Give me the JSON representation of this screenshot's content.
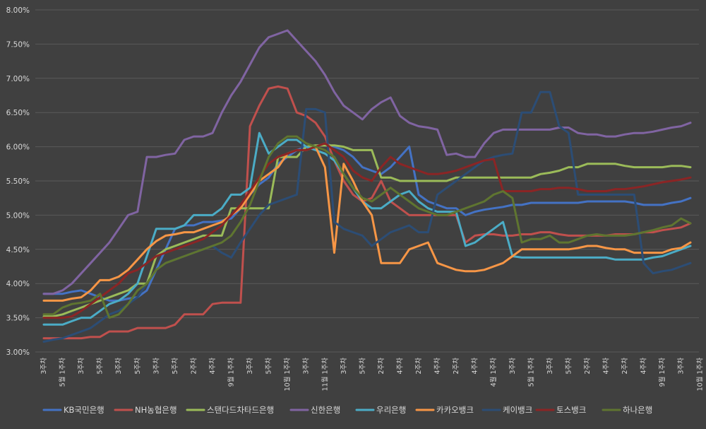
{
  "chart_data": {
    "type": "line",
    "title": "",
    "xlabel": "",
    "ylabel": "",
    "ylim": [
      3.0,
      8.0
    ],
    "yticks": [
      "3.00%",
      "3.50%",
      "4.00%",
      "4.50%",
      "5.00%",
      "5.50%",
      "6.00%",
      "6.50%",
      "7.00%",
      "7.50%",
      "8.00%"
    ],
    "grid": true,
    "legend_position": "bottom",
    "x_tick_labels": [
      {
        "i": 0,
        "label": "3주차"
      },
      {
        "i": 2,
        "label": "5월 1주차"
      },
      {
        "i": 4,
        "label": "3주차"
      },
      {
        "i": 6,
        "label": "5주차"
      },
      {
        "i": 8,
        "label": "3주차"
      },
      {
        "i": 10,
        "label": "5주차"
      },
      {
        "i": 12,
        "label": "3주차"
      },
      {
        "i": 14,
        "label": "5주차"
      },
      {
        "i": 16,
        "label": "2주차"
      },
      {
        "i": 18,
        "label": "4주차"
      },
      {
        "i": 20,
        "label": "9월 1주차"
      },
      {
        "i": 22,
        "label": "3주차"
      },
      {
        "i": 24,
        "label": "5주차"
      },
      {
        "i": 26,
        "label": "10월 1주차"
      },
      {
        "i": 28,
        "label": "3주차"
      },
      {
        "i": 30,
        "label": "11월 1주차"
      },
      {
        "i": 32,
        "label": "3주차"
      },
      {
        "i": 34,
        "label": "5주차"
      },
      {
        "i": 36,
        "label": "2주차"
      },
      {
        "i": 38,
        "label": "4주차"
      },
      {
        "i": 40,
        "label": "2주차"
      },
      {
        "i": 42,
        "label": "4주차"
      },
      {
        "i": 44,
        "label": "2주차"
      },
      {
        "i": 46,
        "label": "4주차"
      },
      {
        "i": 48,
        "label": "4월 1주차"
      },
      {
        "i": 50,
        "label": "3주차"
      },
      {
        "i": 52,
        "label": "5월 1주차"
      },
      {
        "i": 54,
        "label": "3주차"
      },
      {
        "i": 56,
        "label": "5주차"
      },
      {
        "i": 58,
        "label": "2주차"
      },
      {
        "i": 60,
        "label": "4주차"
      },
      {
        "i": 62,
        "label": "2주차"
      },
      {
        "i": 64,
        "label": "4주차"
      },
      {
        "i": 66,
        "label": "9월 1주차"
      },
      {
        "i": 68,
        "label": "3주차"
      },
      {
        "i": 70,
        "label": "10월 1주차"
      }
    ],
    "series": [
      {
        "name": "KB국민은행",
        "color": "#4472c4",
        "values": [
          3.85,
          3.85,
          3.85,
          3.88,
          3.9,
          3.85,
          3.8,
          3.75,
          3.75,
          3.78,
          3.8,
          3.9,
          4.2,
          4.5,
          4.8,
          4.85,
          4.85,
          4.9,
          4.9,
          4.92,
          4.95,
          5.1,
          5.3,
          5.45,
          5.55,
          5.75,
          5.85,
          5.95,
          6.0,
          6.0,
          6.05,
          6.0,
          5.95,
          5.85,
          5.7,
          5.65,
          5.6,
          5.7,
          5.85,
          6.0,
          5.3,
          5.2,
          5.15,
          5.1,
          5.1,
          5.0,
          5.05,
          5.08,
          5.1,
          5.12,
          5.15,
          5.15,
          5.18,
          5.18,
          5.18,
          5.18,
          5.18,
          5.18,
          5.2,
          5.2,
          5.2,
          5.2,
          5.2,
          5.18,
          5.15,
          5.15,
          5.15,
          5.18,
          5.2,
          5.25
        ]
      },
      {
        "name": "NH농협은행",
        "color": "#c0504d",
        "values": [
          3.2,
          3.2,
          3.2,
          3.2,
          3.2,
          3.22,
          3.22,
          3.3,
          3.3,
          3.3,
          3.35,
          3.35,
          3.35,
          3.35,
          3.4,
          3.55,
          3.55,
          3.55,
          3.7,
          3.72,
          3.72,
          3.72,
          6.3,
          6.6,
          6.85,
          6.88,
          6.85,
          6.5,
          6.45,
          6.35,
          6.15,
          5.8,
          5.5,
          5.3,
          5.2,
          5.25,
          5.5,
          5.2,
          5.1,
          5.0,
          5.0,
          5.0,
          5.0,
          5.0,
          5.0,
          4.6,
          4.7,
          4.72,
          4.72,
          4.7,
          4.7,
          4.72,
          4.72,
          4.75,
          4.75,
          4.72,
          4.7,
          4.7,
          4.7,
          4.7,
          4.7,
          4.72,
          4.72,
          4.72,
          4.75,
          4.75,
          4.78,
          4.8,
          4.82,
          4.88
        ]
      },
      {
        "name": "스탠다드차타드은행",
        "color": "#9bbb59",
        "values": [
          3.52,
          3.52,
          3.55,
          3.6,
          3.65,
          3.7,
          3.75,
          3.8,
          3.85,
          3.9,
          4.0,
          4.0,
          4.4,
          4.5,
          4.55,
          4.6,
          4.65,
          4.7,
          4.7,
          4.7,
          5.1,
          5.1,
          5.1,
          5.1,
          5.1,
          5.85,
          5.85,
          5.85,
          6.0,
          6.02,
          6.02,
          6.02,
          6.0,
          5.95,
          5.95,
          5.95,
          5.55,
          5.55,
          5.5,
          5.5,
          5.5,
          5.5,
          5.5,
          5.5,
          5.55,
          5.55,
          5.55,
          5.55,
          5.55,
          5.55,
          5.55,
          5.55,
          5.55,
          5.6,
          5.62,
          5.65,
          5.7,
          5.7,
          5.75,
          5.75,
          5.75,
          5.75,
          5.72,
          5.7,
          5.7,
          5.7,
          5.7,
          5.72,
          5.72,
          5.7
        ]
      },
      {
        "name": "신한은행",
        "color": "#8064a2",
        "values": [
          3.85,
          3.85,
          3.9,
          4.0,
          4.15,
          4.3,
          4.45,
          4.6,
          4.8,
          5.0,
          5.05,
          5.85,
          5.85,
          5.88,
          5.9,
          6.1,
          6.15,
          6.15,
          6.2,
          6.5,
          6.75,
          6.95,
          7.2,
          7.45,
          7.6,
          7.65,
          7.7,
          7.55,
          7.4,
          7.25,
          7.05,
          6.8,
          6.6,
          6.5,
          6.4,
          6.55,
          6.65,
          6.72,
          6.45,
          6.35,
          6.3,
          6.28,
          6.25,
          5.88,
          5.9,
          5.85,
          5.85,
          6.05,
          6.2,
          6.25,
          6.25,
          6.25,
          6.25,
          6.25,
          6.25,
          6.28,
          6.28,
          6.2,
          6.18,
          6.18,
          6.15,
          6.15,
          6.18,
          6.2,
          6.2,
          6.22,
          6.25,
          6.28,
          6.3,
          6.35
        ]
      },
      {
        "name": "우리은행",
        "color": "#4bacc6",
        "values": [
          3.4,
          3.4,
          3.4,
          3.45,
          3.5,
          3.5,
          3.6,
          3.7,
          3.75,
          3.85,
          4.0,
          4.4,
          4.8,
          4.8,
          4.8,
          4.85,
          5.0,
          5.0,
          5.0,
          5.1,
          5.3,
          5.3,
          5.4,
          6.2,
          5.9,
          6.0,
          6.1,
          6.1,
          6.0,
          5.95,
          5.9,
          5.8,
          5.6,
          5.4,
          5.2,
          5.1,
          5.1,
          5.2,
          5.3,
          5.35,
          5.2,
          5.1,
          5.05,
          5.05,
          5.05,
          4.55,
          4.6,
          4.7,
          4.8,
          4.9,
          4.4,
          4.38,
          4.38,
          4.38,
          4.38,
          4.38,
          4.38,
          4.38,
          4.38,
          4.38,
          4.38,
          4.35,
          4.35,
          4.35,
          4.35,
          4.38,
          4.4,
          4.45,
          4.5,
          4.55
        ]
      },
      {
        "name": "카카오뱅크",
        "color": "#f79646",
        "values": [
          3.75,
          3.75,
          3.75,
          3.78,
          3.8,
          3.9,
          4.05,
          4.05,
          4.1,
          4.2,
          4.35,
          4.5,
          4.62,
          4.7,
          4.72,
          4.75,
          4.75,
          4.8,
          4.85,
          4.9,
          5.0,
          5.1,
          5.3,
          5.5,
          5.6,
          5.7,
          5.9,
          5.95,
          5.95,
          6.0,
          5.7,
          4.45,
          5.75,
          5.5,
          5.2,
          5.0,
          4.3,
          4.3,
          4.3,
          4.5,
          4.55,
          4.6,
          4.3,
          4.25,
          4.2,
          4.18,
          4.18,
          4.2,
          4.25,
          4.3,
          4.4,
          4.5,
          4.5,
          4.5,
          4.5,
          4.5,
          4.5,
          4.52,
          4.55,
          4.55,
          4.52,
          4.5,
          4.5,
          4.45,
          4.45,
          4.45,
          4.45,
          4.5,
          4.52,
          4.6
        ]
      },
      {
        "name": "케이뱅크",
        "color": "#2c4d75",
        "values": [
          3.15,
          3.18,
          3.2,
          3.25,
          3.3,
          3.35,
          3.45,
          3.55,
          3.6,
          3.7,
          3.8,
          4.0,
          4.2,
          4.3,
          4.35,
          4.4,
          4.45,
          4.5,
          4.55,
          4.45,
          4.38,
          4.6,
          4.8,
          5.0,
          5.15,
          5.2,
          5.25,
          5.3,
          6.55,
          6.55,
          6.5,
          4.9,
          4.8,
          4.75,
          4.7,
          4.55,
          4.65,
          4.75,
          4.8,
          4.85,
          4.75,
          4.75,
          5.3,
          5.4,
          5.5,
          5.6,
          5.7,
          5.8,
          5.85,
          5.88,
          5.9,
          6.5,
          6.5,
          6.8,
          6.8,
          6.3,
          6.2,
          5.3,
          5.3,
          5.3,
          5.3,
          5.3,
          5.3,
          5.3,
          4.3,
          4.15,
          4.18,
          4.2,
          4.25,
          4.3
        ]
      },
      {
        "name": "토스뱅크",
        "color": "#8b2525",
        "values": [
          3.5,
          3.5,
          3.5,
          3.52,
          3.6,
          3.7,
          3.8,
          3.9,
          4.0,
          4.15,
          4.2,
          4.3,
          4.4,
          4.45,
          4.5,
          4.55,
          4.6,
          4.65,
          4.75,
          4.85,
          5.0,
          5.15,
          5.35,
          5.55,
          5.75,
          5.85,
          5.9,
          5.95,
          5.95,
          6.0,
          6.05,
          5.95,
          5.85,
          5.65,
          5.55,
          5.5,
          5.7,
          5.85,
          5.75,
          5.7,
          5.65,
          5.6,
          5.6,
          5.62,
          5.65,
          5.7,
          5.75,
          5.8,
          5.82,
          5.35,
          5.35,
          5.35,
          5.35,
          5.38,
          5.38,
          5.4,
          5.4,
          5.38,
          5.35,
          5.35,
          5.35,
          5.38,
          5.38,
          5.4,
          5.42,
          5.45,
          5.48,
          5.5,
          5.52,
          5.55
        ]
      },
      {
        "name": "하나은행",
        "color": "#5f7530",
        "values": [
          3.55,
          3.55,
          3.65,
          3.7,
          3.72,
          3.75,
          3.85,
          3.5,
          3.55,
          3.7,
          3.9,
          4.0,
          4.2,
          4.3,
          4.35,
          4.4,
          4.45,
          4.5,
          4.55,
          4.6,
          4.7,
          4.9,
          5.15,
          5.5,
          5.85,
          6.05,
          6.15,
          6.15,
          6.05,
          6.0,
          5.95,
          5.85,
          5.6,
          5.4,
          5.25,
          5.2,
          5.3,
          5.4,
          5.3,
          5.2,
          5.1,
          5.05,
          5.0,
          5.0,
          5.05,
          5.1,
          5.15,
          5.2,
          5.3,
          5.35,
          5.25,
          4.6,
          4.65,
          4.65,
          4.7,
          4.6,
          4.6,
          4.65,
          4.7,
          4.72,
          4.7,
          4.7,
          4.7,
          4.72,
          4.75,
          4.78,
          4.82,
          4.85,
          4.95,
          4.88
        ]
      }
    ]
  }
}
